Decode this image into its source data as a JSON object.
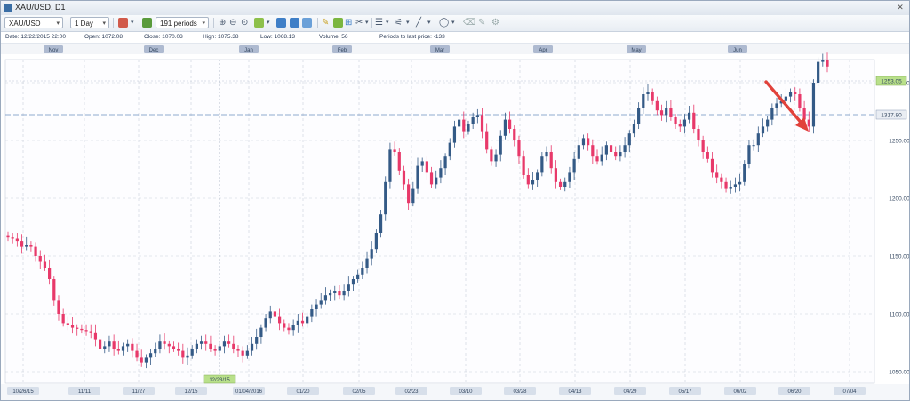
{
  "window": {
    "title": "XAU/USD, D1",
    "close_icon": "close-icon"
  },
  "toolbar": {
    "symbol": "XAU/USD",
    "timeframe": "1 Day",
    "periods": "191 periods"
  },
  "info": {
    "date": "Date: 12/22/2015 22:00",
    "open": "Open: 1072.08",
    "close": "Close: 1070.03",
    "high": "High: 1075.38",
    "low": "Low: 1068.13",
    "volume": "Volume: 56",
    "periods_to_last": "Periods to last price: -133"
  },
  "colors": {
    "bull": "#345a86",
    "bear": "#e8396a",
    "grid": "#c8cfd9",
    "accent_label": "#b9e08a"
  },
  "chart_data": {
    "type": "candlestick",
    "symbol": "XAU/USD",
    "ylim": [
      1040,
      1260
    ],
    "yticks": [
      1050,
      1100,
      1150,
      1200,
      1250,
      1300
    ],
    "current_price_label": "1253.05",
    "reference_price_label": "1317.80",
    "cursor_date_label": "12/23/15",
    "month_labels": [
      "Nov",
      "Dec",
      "Jan",
      "Feb",
      "Mar",
      "Apr",
      "May",
      "Jun"
    ],
    "date_labels": [
      "10/26/15",
      "11/11",
      "11/27",
      "12/15",
      "01/04/2016",
      "01/20",
      "02/05",
      "02/23",
      "03/10",
      "03/28",
      "04/13",
      "04/29",
      "05/17",
      "06/02",
      "06/20",
      "07/04"
    ],
    "annotation": "red arrow pointing to the last large bullish candle",
    "closes": [
      1166,
      1165,
      1163,
      1158,
      1160,
      1158,
      1150,
      1145,
      1140,
      1130,
      1112,
      1100,
      1092,
      1090,
      1088,
      1087,
      1086,
      1085,
      1084,
      1078,
      1070,
      1072,
      1076,
      1070,
      1068,
      1072,
      1074,
      1068,
      1062,
      1058,
      1062,
      1066,
      1070,
      1076,
      1074,
      1072,
      1070,
      1068,
      1062,
      1064,
      1070,
      1074,
      1076,
      1074,
      1070,
      1068,
      1072,
      1076,
      1074,
      1070,
      1068,
      1064,
      1068,
      1074,
      1080,
      1088,
      1096,
      1102,
      1098,
      1092,
      1088,
      1086,
      1090,
      1094,
      1092,
      1098,
      1104,
      1108,
      1112,
      1116,
      1118,
      1120,
      1116,
      1120,
      1126,
      1130,
      1134,
      1140,
      1148,
      1156,
      1170,
      1186,
      1214,
      1242,
      1240,
      1224,
      1212,
      1196,
      1208,
      1228,
      1232,
      1222,
      1212,
      1218,
      1226,
      1236,
      1248,
      1262,
      1268,
      1258,
      1264,
      1270,
      1272,
      1258,
      1242,
      1232,
      1238,
      1254,
      1268,
      1260,
      1250,
      1236,
      1220,
      1212,
      1216,
      1222,
      1236,
      1240,
      1226,
      1214,
      1210,
      1214,
      1222,
      1234,
      1246,
      1252,
      1246,
      1236,
      1232,
      1238,
      1246,
      1240,
      1236,
      1240,
      1246,
      1256,
      1264,
      1278,
      1290,
      1292,
      1284,
      1276,
      1272,
      1278,
      1270,
      1264,
      1262,
      1268,
      1274,
      1260,
      1250,
      1240,
      1234,
      1222,
      1218,
      1214,
      1208,
      1210,
      1212,
      1214,
      1230,
      1246,
      1246,
      1256,
      1262,
      1268,
      1278,
      1282,
      1284,
      1288,
      1292,
      1290,
      1278,
      1268,
      1262,
      1300,
      1318,
      1320,
      1314
    ]
  }
}
